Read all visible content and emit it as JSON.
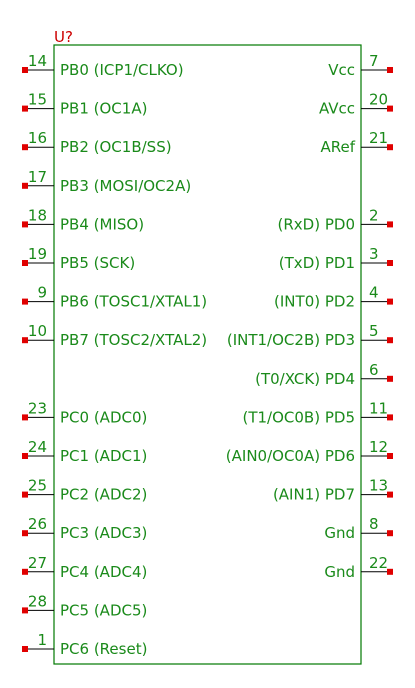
{
  "symbol": {
    "reference": "U?",
    "colors": {
      "body": "#007800",
      "text": "#1a8a1a",
      "reference": "#cc0000",
      "pin_end": "#e00000",
      "pin_line": "#000000"
    }
  },
  "left_pins": [
    {
      "number": "14",
      "name": "PB0 (ICP1/CLKO)"
    },
    {
      "number": "15",
      "name": "PB1 (OC1A)"
    },
    {
      "number": "16",
      "name": "PB2 (OC1B/SS)"
    },
    {
      "number": "17",
      "name": "PB3 (MOSI/OC2A)"
    },
    {
      "number": "18",
      "name": "PB4 (MISO)"
    },
    {
      "number": "19",
      "name": "PB5 (SCK)"
    },
    {
      "number": "9",
      "name": "PB6 (TOSC1/XTAL1)"
    },
    {
      "number": "10",
      "name": "PB7 (TOSC2/XTAL2)"
    },
    null,
    {
      "number": "23",
      "name": "PC0 (ADC0)"
    },
    {
      "number": "24",
      "name": "PC1 (ADC1)"
    },
    {
      "number": "25",
      "name": "PC2 (ADC2)"
    },
    {
      "number": "26",
      "name": "PC3 (ADC3)"
    },
    {
      "number": "27",
      "name": "PC4 (ADC4)"
    },
    {
      "number": "28",
      "name": "PC5 (ADC5)"
    },
    {
      "number": "1",
      "name": "PC6 (Reset)"
    }
  ],
  "right_pins": [
    {
      "number": "7",
      "name": "Vcc"
    },
    {
      "number": "20",
      "name": "AVcc"
    },
    {
      "number": "21",
      "name": "ARef"
    },
    null,
    {
      "number": "2",
      "name": "(RxD) PD0"
    },
    {
      "number": "3",
      "name": "(TxD) PD1"
    },
    {
      "number": "4",
      "name": "(INT0) PD2"
    },
    {
      "number": "5",
      "name": "(INT1/OC2B) PD3"
    },
    {
      "number": "6",
      "name": "(T0/XCK) PD4"
    },
    {
      "number": "11",
      "name": "(T1/OC0B) PD5"
    },
    {
      "number": "12",
      "name": "(AIN0/OC0A) PD6"
    },
    {
      "number": "13",
      "name": "(AIN1) PD7"
    },
    {
      "number": "8",
      "name": "Gnd"
    },
    {
      "number": "22",
      "name": "Gnd"
    }
  ]
}
